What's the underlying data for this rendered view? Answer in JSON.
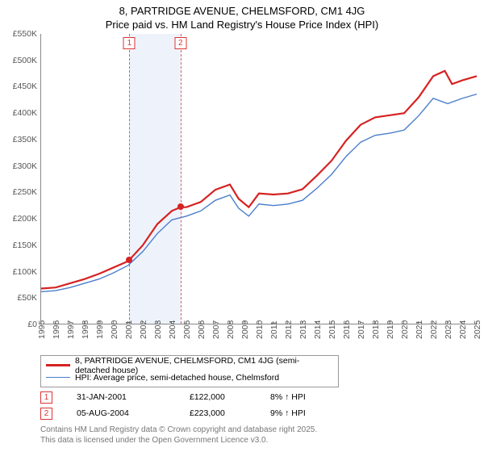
{
  "title_line1": "8, PARTRIDGE AVENUE, CHELMSFORD, CM1 4JG",
  "title_line2": "Price paid vs. HM Land Registry's House Price Index (HPI)",
  "colors": {
    "series_price": "#d62222",
    "series_hpi": "#4b7ecb",
    "shade_band": "#eef3fb",
    "marker_dot": "#d62222",
    "axis_text": "#555555",
    "footnote": "#777777"
  },
  "chart": {
    "type": "line",
    "ylim": [
      0,
      550000
    ],
    "ytick_step": 50000,
    "ytick_format": "£{}K",
    "xlim": [
      1995,
      2025
    ],
    "xtick_step": 1,
    "line_width_price": 2.2,
    "line_width_hpi": 1.4,
    "shade_band": {
      "from": 2001.08,
      "to": 2004.6
    },
    "series_price_points": [
      [
        1995.0,
        68000
      ],
      [
        1996.0,
        70000
      ],
      [
        1997.0,
        78000
      ],
      [
        1998.0,
        86000
      ],
      [
        1999.0,
        96000
      ],
      [
        2000.0,
        108000
      ],
      [
        2001.0,
        120000
      ],
      [
        2002.0,
        150000
      ],
      [
        2003.0,
        190000
      ],
      [
        2004.0,
        215000
      ],
      [
        2004.6,
        222000
      ],
      [
        2005.0,
        222000
      ],
      [
        2006.0,
        232000
      ],
      [
        2007.0,
        255000
      ],
      [
        2008.0,
        265000
      ],
      [
        2008.6,
        238000
      ],
      [
        2009.3,
        222000
      ],
      [
        2010.0,
        248000
      ],
      [
        2011.0,
        246000
      ],
      [
        2012.0,
        248000
      ],
      [
        2013.0,
        256000
      ],
      [
        2014.0,
        282000
      ],
      [
        2015.0,
        310000
      ],
      [
        2016.0,
        348000
      ],
      [
        2017.0,
        378000
      ],
      [
        2018.0,
        392000
      ],
      [
        2019.0,
        396000
      ],
      [
        2020.0,
        400000
      ],
      [
        2021.0,
        430000
      ],
      [
        2022.0,
        470000
      ],
      [
        2022.8,
        480000
      ],
      [
        2023.3,
        455000
      ],
      [
        2024.0,
        462000
      ],
      [
        2025.0,
        470000
      ]
    ],
    "series_hpi_points": [
      [
        1995.0,
        62000
      ],
      [
        1996.0,
        64000
      ],
      [
        1997.0,
        70000
      ],
      [
        1998.0,
        78000
      ],
      [
        1999.0,
        86000
      ],
      [
        2000.0,
        98000
      ],
      [
        2001.0,
        112000
      ],
      [
        2002.0,
        138000
      ],
      [
        2003.0,
        172000
      ],
      [
        2004.0,
        198000
      ],
      [
        2005.0,
        205000
      ],
      [
        2006.0,
        215000
      ],
      [
        2007.0,
        235000
      ],
      [
        2008.0,
        245000
      ],
      [
        2008.6,
        220000
      ],
      [
        2009.3,
        205000
      ],
      [
        2010.0,
        228000
      ],
      [
        2011.0,
        225000
      ],
      [
        2012.0,
        228000
      ],
      [
        2013.0,
        235000
      ],
      [
        2014.0,
        258000
      ],
      [
        2015.0,
        284000
      ],
      [
        2016.0,
        318000
      ],
      [
        2017.0,
        345000
      ],
      [
        2018.0,
        358000
      ],
      [
        2019.0,
        362000
      ],
      [
        2020.0,
        368000
      ],
      [
        2021.0,
        395000
      ],
      [
        2022.0,
        428000
      ],
      [
        2023.0,
        418000
      ],
      [
        2024.0,
        428000
      ],
      [
        2025.0,
        436000
      ]
    ]
  },
  "sale_markers": [
    {
      "n": "1",
      "x": 2001.08,
      "y": 122000
    },
    {
      "n": "2",
      "x": 2004.6,
      "y": 223000
    }
  ],
  "legend": {
    "series1": "8, PARTRIDGE AVENUE, CHELMSFORD, CM1 4JG (semi-detached house)",
    "series2": "HPI: Average price, semi-detached house, Chelmsford"
  },
  "sales": [
    {
      "n": "1",
      "date": "31-JAN-2001",
      "price": "£122,000",
      "delta": "8%",
      "delta_dir": "up",
      "delta_suffix": "HPI"
    },
    {
      "n": "2",
      "date": "05-AUG-2004",
      "price": "£223,000",
      "delta": "9%",
      "delta_dir": "up",
      "delta_suffix": "HPI"
    }
  ],
  "footnote_line1": "Contains HM Land Registry data © Crown copyright and database right 2025.",
  "footnote_line2": "This data is licensed under the Open Government Licence v3.0."
}
